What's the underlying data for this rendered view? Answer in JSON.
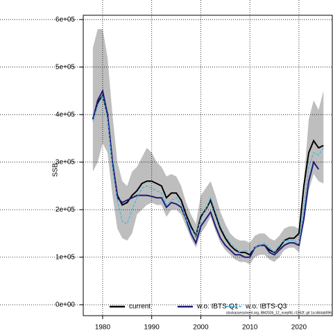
{
  "chart_data": {
    "type": "line",
    "ylabel": "SSB",
    "footnote": "stockassessment.org, BM2026_12_nsepf4l, r1962f, git 1cc464ab096",
    "x": [
      1978,
      1979,
      1980,
      1981,
      1982,
      1983,
      1984,
      1985,
      1986,
      1987,
      1988,
      1989,
      1990,
      1991,
      1992,
      1993,
      1994,
      1995,
      1996,
      1997,
      1998,
      1999,
      2000,
      2001,
      2002,
      2003,
      2004,
      2005,
      2006,
      2007,
      2008,
      2009,
      2010,
      2011,
      2012,
      2013,
      2014,
      2015,
      2016,
      2017,
      2018,
      2019,
      2020,
      2021,
      2022,
      2023,
      2024,
      2025
    ],
    "band": {
      "color": "#bebebe",
      "upper": [
        540000,
        580000,
        580000,
        520000,
        400000,
        300000,
        260000,
        250000,
        280000,
        290000,
        310000,
        330000,
        320000,
        300000,
        290000,
        270000,
        275000,
        270000,
        250000,
        215000,
        190000,
        170000,
        230000,
        245000,
        260000,
        230000,
        195000,
        170000,
        150000,
        140000,
        135000,
        135000,
        130000,
        145000,
        150000,
        150000,
        140000,
        135000,
        145000,
        160000,
        165000,
        165000,
        160000,
        260000,
        390000,
        430000,
        410000,
        450000
      ],
      "lower": [
        280000,
        300000,
        340000,
        320000,
        230000,
        160000,
        140000,
        135000,
        150000,
        190000,
        200000,
        210000,
        215000,
        210000,
        210000,
        185000,
        200000,
        200000,
        190000,
        165000,
        140000,
        120000,
        150000,
        165000,
        185000,
        155000,
        130000,
        115000,
        105000,
        95000,
        90000,
        90000,
        85000,
        100000,
        105000,
        105000,
        95000,
        90000,
        100000,
        115000,
        120000,
        120000,
        110000,
        175000,
        240000,
        275000,
        260000,
        255000
      ]
    },
    "series": [
      {
        "name": "current",
        "color": "#000000",
        "dash": false,
        "values": [
          390000,
          425000,
          440000,
          400000,
          300000,
          230000,
          210000,
          215000,
          230000,
          240000,
          255000,
          260000,
          260000,
          255000,
          250000,
          225000,
          235000,
          235000,
          220000,
          190000,
          165000,
          145000,
          185000,
          200000,
          220000,
          190000,
          160000,
          140000,
          125000,
          115000,
          110000,
          110000,
          105000,
          120000,
          125000,
          125000,
          115000,
          110000,
          120000,
          135000,
          140000,
          140000,
          150000,
          250000,
          320000,
          345000,
          330000,
          335000
        ]
      },
      {
        "name": "w.o. IBTS-Q1",
        "color": "#1f1a7a",
        "dash": false,
        "values": [
          390000,
          430000,
          450000,
          400000,
          300000,
          225000,
          215000,
          220000,
          225000,
          230000,
          230000,
          230000,
          228000,
          225000,
          225000,
          205000,
          215000,
          212000,
          205000,
          180000,
          150000,
          130000,
          165000,
          180000,
          195000,
          165000,
          140000,
          125000,
          115000,
          105000,
          105000,
          100000,
          100000,
          120000,
          125000,
          125000,
          110000,
          105000,
          115000,
          125000,
          130000,
          130000,
          125000,
          180000,
          260000,
          300000,
          285000,
          null
        ]
      },
      {
        "name": "w.o. IBTS-Q3",
        "color": "#3fb8e0",
        "dash": true,
        "values": [
          385000,
          420000,
          440000,
          390000,
          290000,
          220000,
          175000,
          170000,
          200000,
          225000,
          245000,
          250000,
          245000,
          240000,
          235000,
          210000,
          220000,
          225000,
          210000,
          180000,
          160000,
          145000,
          180000,
          200000,
          225000,
          195000,
          165000,
          145000,
          130000,
          120000,
          110000,
          115000,
          110000,
          120000,
          125000,
          130000,
          120000,
          110000,
          125000,
          135000,
          135000,
          135000,
          130000,
          200000,
          290000,
          320000,
          315000,
          330000
        ]
      }
    ],
    "xlim": [
      1976.05,
      2026.8
    ],
    "xticks": [
      1980,
      1990,
      2000,
      2010,
      2020
    ],
    "ylim": [
      -23000,
      609000
    ],
    "yticks": [
      {
        "value": 0,
        "label": "0e+00"
      },
      {
        "value": 100000,
        "label": "1e+05"
      },
      {
        "value": 200000,
        "label": "2e+05"
      },
      {
        "value": 300000,
        "label": "3e+05"
      },
      {
        "value": 400000,
        "label": "4e+05"
      },
      {
        "value": 500000,
        "label": "5e+05"
      },
      {
        "value": 600000,
        "label": "6e+05"
      }
    ],
    "grid": true
  }
}
